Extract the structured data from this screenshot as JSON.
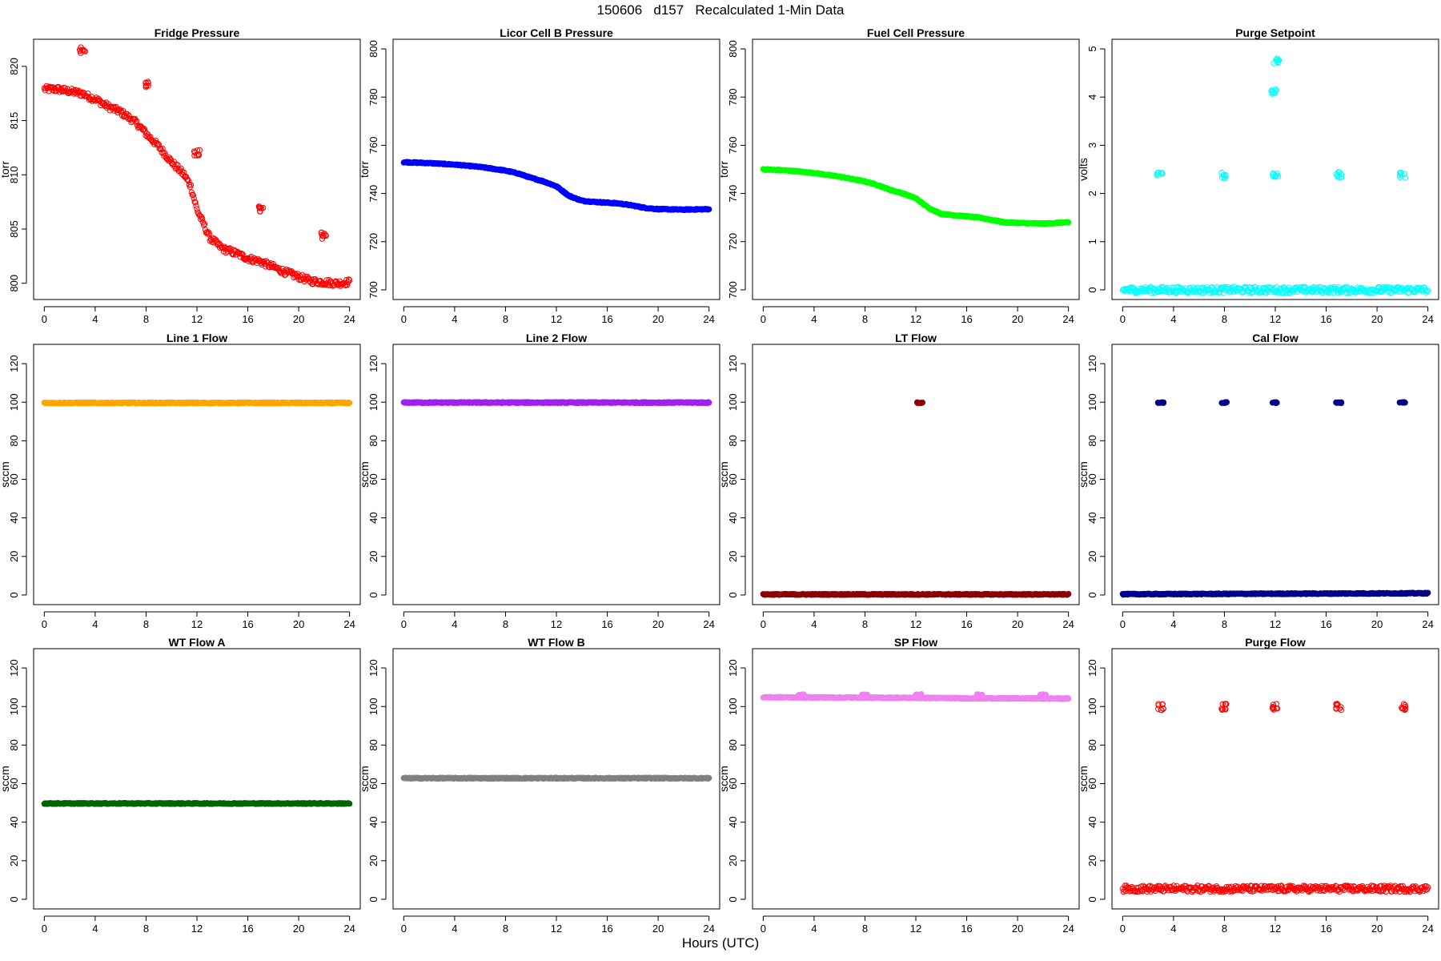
{
  "title": "150606   d157   Recalculated 1-Min Data",
  "xlabel": "Hours (UTC)",
  "chart_data": [
    {
      "type": "scatter",
      "title": "Fridge Pressure",
      "ylabel": "torr",
      "color": "#ff0000",
      "marker": "open-circle",
      "xlim": [
        0,
        24
      ],
      "ylim": [
        798.5,
        822.5
      ],
      "xticks": [
        0,
        4,
        8,
        12,
        16,
        20,
        24
      ],
      "yticks": [
        800,
        805,
        810,
        815,
        820
      ],
      "series": [
        {
          "x": [
            0,
            1,
            2,
            3,
            3.5,
            4,
            5,
            6,
            7,
            7.5,
            8,
            9,
            10,
            11,
            11.5,
            12,
            12.5,
            13,
            14,
            15,
            16,
            17,
            18,
            19,
            20,
            21,
            22,
            23,
            24
          ],
          "y": [
            817.9,
            817.9,
            817.7,
            817.5,
            817.2,
            817,
            816.3,
            815.8,
            815,
            814.5,
            813.8,
            812.6,
            811.2,
            810,
            809,
            806.8,
            805.5,
            804.2,
            803.2,
            802.8,
            802.3,
            802,
            801.5,
            801,
            800.6,
            800.2,
            800.1,
            800,
            800.1
          ],
          "bursts": [
            {
              "x": 3,
              "y": 821.5
            },
            {
              "x": 8,
              "y": 818.3
            },
            {
              "x": 12,
              "y": 812
            },
            {
              "x": 17,
              "y": 806.8
            },
            {
              "x": 22,
              "y": 804.4
            }
          ]
        }
      ]
    },
    {
      "type": "scatter",
      "title": "Licor Cell B Pressure",
      "ylabel": "torr",
      "color": "#0000ff",
      "marker": "filled",
      "xlim": [
        0,
        24
      ],
      "ylim": [
        696,
        804
      ],
      "xticks": [
        0,
        4,
        8,
        12,
        16,
        20,
        24
      ],
      "yticks": [
        700,
        720,
        740,
        760,
        780,
        800
      ],
      "series": [
        {
          "x": [
            0,
            2,
            4,
            6,
            8,
            9,
            10,
            11,
            12,
            13,
            14,
            15,
            16,
            17,
            18,
            19,
            20,
            22,
            24
          ],
          "y": [
            753,
            752.6,
            752,
            751,
            749.5,
            748.3,
            746.5,
            745,
            743,
            739,
            737,
            736.5,
            736.2,
            735.8,
            735,
            734,
            733.5,
            733.3,
            733.5
          ],
          "bursts": []
        }
      ]
    },
    {
      "type": "scatter",
      "title": "Fuel Cell Pressure",
      "ylabel": "torr",
      "color": "#00ff00",
      "marker": "filled",
      "xlim": [
        0,
        24
      ],
      "ylim": [
        696,
        804
      ],
      "xticks": [
        0,
        4,
        8,
        12,
        16,
        20,
        24
      ],
      "yticks": [
        700,
        720,
        740,
        760,
        780,
        800
      ],
      "series": [
        {
          "x": [
            0,
            2,
            4,
            6,
            8,
            9,
            10,
            11,
            12,
            13,
            14,
            15,
            16,
            17,
            18,
            19,
            20,
            22,
            24
          ],
          "y": [
            750,
            749.5,
            748.5,
            747,
            745,
            743.5,
            741.5,
            740,
            738,
            734,
            731.5,
            731,
            730.5,
            730,
            729,
            728,
            727.8,
            727.5,
            728
          ],
          "bursts": []
        }
      ]
    },
    {
      "type": "scatter",
      "title": "Purge Setpoint",
      "ylabel": "volts",
      "color": "#00ffff",
      "marker": "open-circle",
      "xlim": [
        0,
        24
      ],
      "ylim": [
        -0.2,
        5.2
      ],
      "xticks": [
        0,
        4,
        8,
        12,
        16,
        20,
        24
      ],
      "yticks": [
        0,
        1,
        2,
        3,
        4,
        5
      ],
      "series": [
        {
          "x": [
            0,
            24
          ],
          "y": [
            0,
            0
          ],
          "bursts": [
            {
              "x": 2.9,
              "y": 2.38
            },
            {
              "x": 8,
              "y": 2.38
            },
            {
              "x": 12,
              "y": 2.38
            },
            {
              "x": 17,
              "y": 2.38
            },
            {
              "x": 22,
              "y": 2.38
            },
            {
              "x": 11.9,
              "y": 4.1
            },
            {
              "x": 12.1,
              "y": 4.75
            }
          ]
        }
      ]
    },
    {
      "type": "scatter",
      "title": "Line 1 Flow",
      "ylabel": "sccm",
      "color": "#ffa500",
      "marker": "filled",
      "xlim": [
        0,
        24
      ],
      "ylim": [
        -5,
        130
      ],
      "xticks": [
        0,
        4,
        8,
        12,
        16,
        20,
        24
      ],
      "yticks": [
        0,
        20,
        40,
        60,
        80,
        100,
        120
      ],
      "series": [
        {
          "x": [
            0,
            24
          ],
          "y": [
            99.6,
            99.6
          ],
          "bursts": []
        }
      ]
    },
    {
      "type": "scatter",
      "title": "Line 2 Flow",
      "ylabel": "sccm",
      "color": "#a020f0",
      "marker": "filled",
      "xlim": [
        0,
        24
      ],
      "ylim": [
        -5,
        130
      ],
      "xticks": [
        0,
        4,
        8,
        12,
        16,
        20,
        24
      ],
      "yticks": [
        0,
        20,
        40,
        60,
        80,
        100,
        120
      ],
      "series": [
        {
          "x": [
            0,
            24
          ],
          "y": [
            99.8,
            99.8
          ],
          "bursts": []
        }
      ]
    },
    {
      "type": "scatter",
      "title": "LT Flow",
      "ylabel": "sccm",
      "color": "#8b0000",
      "marker": "filled",
      "xlim": [
        0,
        24
      ],
      "ylim": [
        -5,
        130
      ],
      "xticks": [
        0,
        4,
        8,
        12,
        16,
        20,
        24
      ],
      "yticks": [
        0,
        20,
        40,
        60,
        80,
        100,
        120
      ],
      "series": [
        {
          "x": [
            0,
            24
          ],
          "y": [
            0.3,
            0.3
          ],
          "bursts": [
            {
              "x": 12.3,
              "y": 99.8
            }
          ]
        }
      ]
    },
    {
      "type": "scatter",
      "title": "Cal Flow",
      "ylabel": "sccm",
      "color": "#00008b",
      "marker": "filled",
      "xlim": [
        0,
        24
      ],
      "ylim": [
        -5,
        130
      ],
      "xticks": [
        0,
        4,
        8,
        12,
        16,
        20,
        24
      ],
      "yticks": [
        0,
        20,
        40,
        60,
        80,
        100,
        120
      ],
      "series": [
        {
          "x": [
            0,
            24
          ],
          "y": [
            0.4,
            0.9
          ],
          "bursts": [
            {
              "x": 3,
              "y": 99.8
            },
            {
              "x": 8,
              "y": 99.8
            },
            {
              "x": 12,
              "y": 99.8
            },
            {
              "x": 17,
              "y": 99.8
            },
            {
              "x": 22,
              "y": 99.8
            }
          ]
        }
      ]
    },
    {
      "type": "scatter",
      "title": "WT Flow A",
      "ylabel": "sccm",
      "color": "#006400",
      "marker": "filled",
      "xlim": [
        0,
        24
      ],
      "ylim": [
        -5,
        130
      ],
      "xticks": [
        0,
        4,
        8,
        12,
        16,
        20,
        24
      ],
      "yticks": [
        0,
        20,
        40,
        60,
        80,
        100,
        120
      ],
      "series": [
        {
          "x": [
            0,
            24
          ],
          "y": [
            49.7,
            49.7
          ],
          "bursts": []
        }
      ]
    },
    {
      "type": "scatter",
      "title": "WT Flow B",
      "ylabel": "sccm",
      "color": "#808080",
      "marker": "filled",
      "xlim": [
        0,
        24
      ],
      "ylim": [
        -5,
        130
      ],
      "xticks": [
        0,
        4,
        8,
        12,
        16,
        20,
        24
      ],
      "yticks": [
        0,
        20,
        40,
        60,
        80,
        100,
        120
      ],
      "series": [
        {
          "x": [
            0,
            24
          ],
          "y": [
            62.8,
            62.8
          ],
          "bursts": []
        }
      ]
    },
    {
      "type": "scatter",
      "title": "SP Flow",
      "ylabel": "sccm",
      "color": "#ee82ee",
      "marker": "filled",
      "xlim": [
        0,
        24
      ],
      "ylim": [
        -5,
        130
      ],
      "xticks": [
        0,
        4,
        8,
        12,
        16,
        20,
        24
      ],
      "yticks": [
        0,
        20,
        40,
        60,
        80,
        100,
        120
      ],
      "series": [
        {
          "x": [
            0,
            4,
            8,
            12,
            16,
            20,
            24
          ],
          "y": [
            104.8,
            104.7,
            104.6,
            104.5,
            104.3,
            104.2,
            104.1
          ],
          "bursts": [
            {
              "x": 3,
              "y": 106.2
            },
            {
              "x": 8,
              "y": 106.2
            },
            {
              "x": 12.2,
              "y": 106.2
            },
            {
              "x": 17,
              "y": 106.2
            },
            {
              "x": 22,
              "y": 106.2
            }
          ]
        }
      ]
    },
    {
      "type": "scatter",
      "title": "Purge Flow",
      "ylabel": "sccm",
      "color": "#ff0000",
      "marker": "open-circle",
      "xlim": [
        0,
        24
      ],
      "ylim": [
        -5,
        130
      ],
      "xticks": [
        0,
        4,
        8,
        12,
        16,
        20,
        24
      ],
      "yticks": [
        0,
        20,
        40,
        60,
        80,
        100,
        120
      ],
      "series": [
        {
          "x": [
            0,
            24
          ],
          "y": [
            5.5,
            5.5
          ],
          "bursts": [
            {
              "x": 3,
              "y": 99.8
            },
            {
              "x": 8,
              "y": 99.8
            },
            {
              "x": 12,
              "y": 99.8
            },
            {
              "x": 17,
              "y": 99.8
            },
            {
              "x": 22,
              "y": 99.8
            }
          ]
        }
      ]
    }
  ]
}
